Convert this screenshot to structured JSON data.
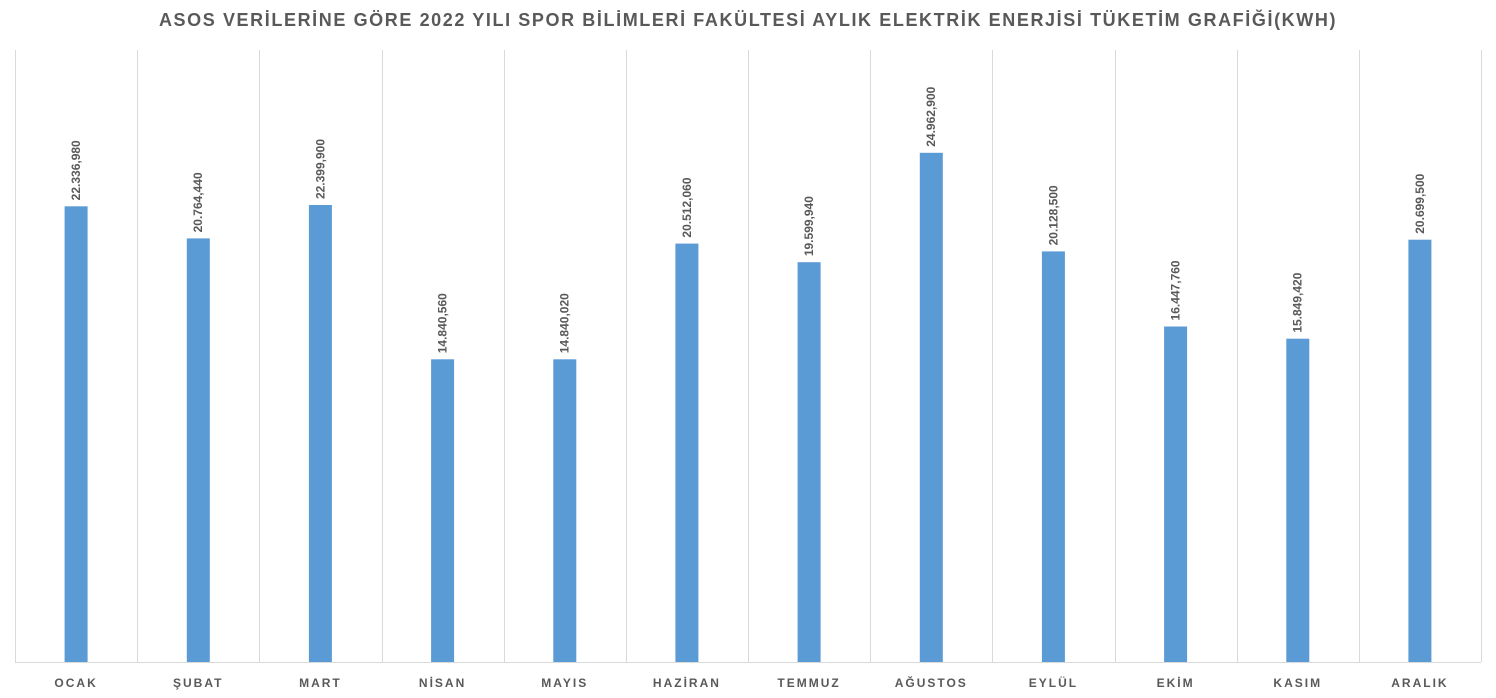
{
  "chart_data": {
    "type": "bar",
    "title": "ASOS VERİLERİNE GÖRE 2022 YILI SPOR BİLİMLERİ FAKÜLTESİ AYLIK ELEKTRİK ENERJİSİ TÜKETİM GRAFİĞİ(KWH)",
    "categories": [
      "OCAK",
      "ŞUBAT",
      "MART",
      "NİSAN",
      "MAYIS",
      "HAZİRAN",
      "TEMMUZ",
      "AĞUSTOS",
      "EYLÜL",
      "EKİM",
      "KASIM",
      "ARALIK"
    ],
    "values": [
      22336.98,
      20764.44,
      22399.9,
      14840.56,
      14840.02,
      20512.06,
      19599.94,
      24962.9,
      20128.5,
      16447.76,
      15849.42,
      20699.5
    ],
    "data_labels": [
      "22.336,980",
      "20.764,440",
      "22.399,900",
      "14.840,560",
      "14.840,020",
      "20.512,060",
      "19.599,940",
      "24.962,900",
      "20.128,500",
      "16.447,760",
      "15.849,420",
      "20.699,500"
    ],
    "ylim": [
      0,
      30000
    ],
    "grid": "vertical",
    "legend": "none",
    "bar_color": "#5B9BD5",
    "grid_color": "#D9D9D9",
    "text_color": "#595959"
  }
}
